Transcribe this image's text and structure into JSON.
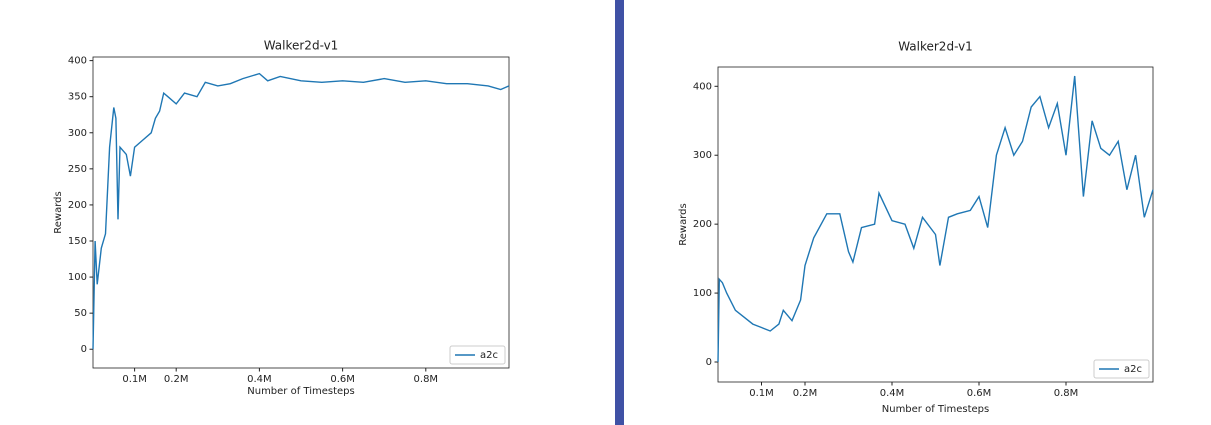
{
  "chart_data": [
    {
      "type": "line",
      "title": "Walker2d-v1",
      "x_label": "Number of Timesteps",
      "y_label": "Rewards",
      "x": [
        0,
        0.005,
        0.01,
        0.02,
        0.03,
        0.04,
        0.05,
        0.055,
        0.06,
        0.065,
        0.08,
        0.09,
        0.1,
        0.12,
        0.14,
        0.15,
        0.16,
        0.17,
        0.18,
        0.2,
        0.22,
        0.25,
        0.27,
        0.3,
        0.33,
        0.36,
        0.4,
        0.42,
        0.45,
        0.5,
        0.55,
        0.6,
        0.65,
        0.7,
        0.75,
        0.8,
        0.85,
        0.9,
        0.95,
        0.98,
        1.0
      ],
      "series": [
        {
          "name": "a2c",
          "color": "#1f77b4",
          "values": [
            0,
            150,
            90,
            140,
            160,
            280,
            335,
            320,
            180,
            280,
            270,
            240,
            280,
            290,
            300,
            320,
            330,
            355,
            350,
            340,
            355,
            350,
            370,
            365,
            368,
            375,
            382,
            372,
            378,
            372,
            370,
            372,
            370,
            375,
            370,
            372,
            368,
            368,
            365,
            360,
            365
          ]
        }
      ],
      "xlim": [
        0,
        1.0
      ],
      "ylim": [
        -26,
        405
      ],
      "xticks": [
        {
          "value": 0.1,
          "label": "0.1M"
        },
        {
          "value": 0.2,
          "label": "0.2M"
        },
        {
          "value": 0.4,
          "label": "0.4M"
        },
        {
          "value": 0.6,
          "label": "0.6M"
        },
        {
          "value": 0.8,
          "label": "0.8M"
        }
      ],
      "yticks": [
        0,
        50,
        100,
        150,
        200,
        250,
        300,
        350,
        400
      ],
      "legend": "lower right"
    },
    {
      "type": "line",
      "title": "Walker2d-v1",
      "x_label": "Number of Timesteps",
      "y_label": "Rewards",
      "x": [
        0,
        0.003,
        0.01,
        0.02,
        0.04,
        0.06,
        0.08,
        0.1,
        0.12,
        0.14,
        0.15,
        0.17,
        0.19,
        0.2,
        0.22,
        0.25,
        0.28,
        0.3,
        0.31,
        0.33,
        0.36,
        0.37,
        0.4,
        0.43,
        0.45,
        0.47,
        0.5,
        0.51,
        0.53,
        0.55,
        0.58,
        0.6,
        0.62,
        0.64,
        0.66,
        0.68,
        0.7,
        0.72,
        0.74,
        0.76,
        0.78,
        0.8,
        0.82,
        0.84,
        0.86,
        0.88,
        0.9,
        0.92,
        0.94,
        0.96,
        0.98,
        1.0
      ],
      "series": [
        {
          "name": "a2c",
          "color": "#1f77b4",
          "values": [
            0,
            120,
            115,
            100,
            75,
            65,
            55,
            50,
            45,
            55,
            75,
            60,
            90,
            140,
            180,
            215,
            215,
            160,
            145,
            195,
            200,
            245,
            205,
            200,
            165,
            210,
            185,
            140,
            210,
            215,
            220,
            240,
            195,
            300,
            340,
            300,
            320,
            370,
            385,
            340,
            375,
            300,
            415,
            240,
            350,
            310,
            300,
            320,
            250,
            300,
            210,
            250
          ]
        }
      ],
      "xlim": [
        0,
        1.0
      ],
      "ylim": [
        -29,
        428
      ],
      "xticks": [
        {
          "value": 0.1,
          "label": "0.1M"
        },
        {
          "value": 0.2,
          "label": "0.2M"
        },
        {
          "value": 0.4,
          "label": "0.4M"
        },
        {
          "value": 0.6,
          "label": "0.6M"
        },
        {
          "value": 0.8,
          "label": "0.8M"
        }
      ],
      "yticks": [
        0,
        100,
        200,
        300,
        400
      ],
      "legend": "lower right"
    }
  ]
}
